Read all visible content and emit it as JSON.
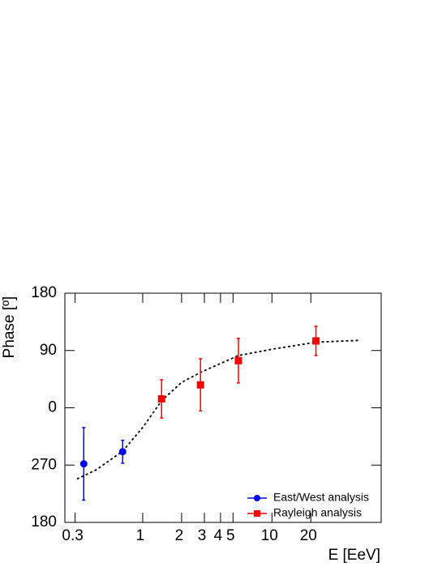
{
  "chart_data": {
    "type": "scatter",
    "x_label": "E [EeV]",
    "y_label": "Phase [º]",
    "xscale": "log",
    "xlim": [
      0.25,
      70
    ],
    "xticks": [
      0.3,
      1,
      2,
      3,
      4,
      5,
      10,
      20
    ],
    "ylim": [
      -180,
      180
    ],
    "yticks": [
      {
        "value": -180,
        "label": "180"
      },
      {
        "value": -90,
        "label": "270"
      },
      0,
      90,
      180
    ],
    "legend": "lower right",
    "series": [
      {
        "name": "East/West analysis",
        "color": "#0000ff",
        "marker": "circle",
        "x": [
          0.35,
          0.7
        ],
        "values": [
          -88,
          -69
        ],
        "errors": [
          57,
          18
        ]
      },
      {
        "name": "Rayleigh analysis",
        "color": "#ff0000",
        "marker": "square",
        "x": [
          1.4,
          2.8,
          5.5,
          21.9
        ],
        "values": [
          14,
          36,
          74,
          105
        ],
        "errors": [
          30,
          41,
          35,
          23
        ]
      }
    ],
    "fit": {
      "color": "#000000",
      "style": "dashed",
      "x": [
        0.31,
        0.44,
        0.7,
        1,
        1.4,
        2,
        2.9,
        5.5,
        10,
        21.9,
        48
      ],
      "values": [
        -112,
        -97,
        -68,
        -31,
        11,
        40,
        57,
        82,
        92,
        103,
        106
      ]
    }
  }
}
